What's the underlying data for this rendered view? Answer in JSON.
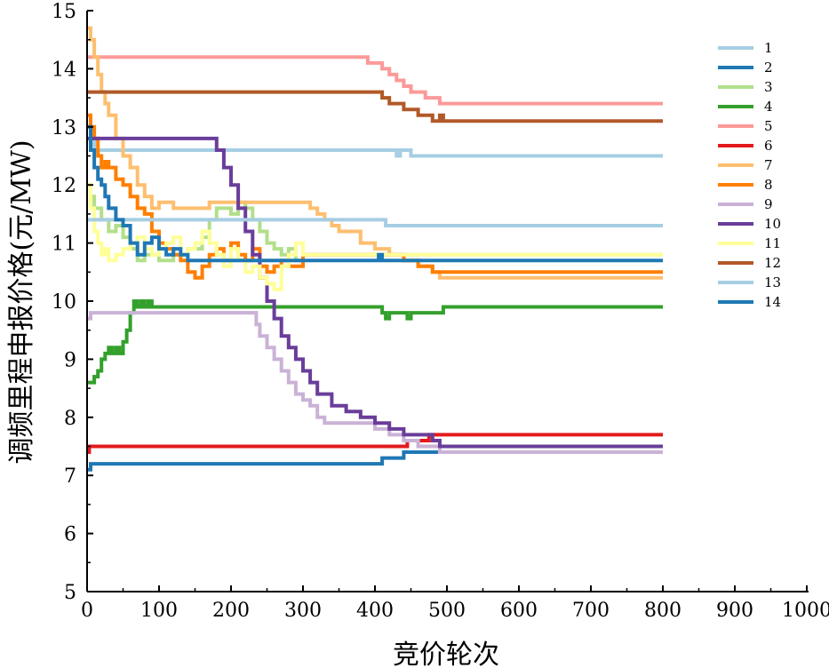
{
  "chart_data": {
    "type": "line",
    "title": "",
    "xlabel": "竞价轮次",
    "ylabel": "调频里程申报价格(元/MW)",
    "xlim": [
      0,
      1000
    ],
    "ylim": [
      5,
      15
    ],
    "xticks": [
      0,
      100,
      200,
      300,
      400,
      500,
      600,
      700,
      800,
      900,
      1000
    ],
    "yticks": [
      5,
      6,
      7,
      8,
      9,
      10,
      11,
      12,
      13,
      14,
      15
    ],
    "grid": false,
    "legend_position": "top-right",
    "series": [
      {
        "name": "1",
        "color": "#a6cee3",
        "x": [
          0,
          5,
          10,
          20,
          420,
          430,
          435,
          445,
          450,
          800
        ],
        "y": [
          13.0,
          12.8,
          12.6,
          12.6,
          12.6,
          12.5,
          12.6,
          12.6,
          12.5,
          12.5
        ]
      },
      {
        "name": "2",
        "color": "#1f78b4",
        "x": [
          0,
          5,
          10,
          200,
          400,
          410,
          420,
          440,
          450,
          470,
          800
        ],
        "y": [
          7.1,
          7.2,
          7.2,
          7.2,
          7.2,
          7.3,
          7.3,
          7.4,
          7.4,
          7.4,
          7.4
        ]
      },
      {
        "name": "3",
        "color": "#b2df8a",
        "x": [
          0,
          5,
          10,
          20,
          30,
          40,
          50,
          60,
          70,
          80,
          100,
          120,
          140,
          160,
          170,
          180,
          190,
          200,
          210,
          220,
          230,
          240,
          250,
          260,
          270,
          280,
          290,
          300,
          320,
          350,
          400,
          420,
          450,
          800
        ],
        "y": [
          12.0,
          11.8,
          11.6,
          11.4,
          11.2,
          11.3,
          11.1,
          10.9,
          10.7,
          10.8,
          10.7,
          10.8,
          10.9,
          11.1,
          11.4,
          11.6,
          11.6,
          11.5,
          11.7,
          11.6,
          11.4,
          11.2,
          11.0,
          10.9,
          10.8,
          10.9,
          10.7,
          10.8,
          10.8,
          10.8,
          10.8,
          10.8,
          10.8,
          10.8
        ]
      },
      {
        "name": "4",
        "color": "#33a02c",
        "x": [
          0,
          5,
          10,
          15,
          20,
          25,
          30,
          35,
          40,
          45,
          50,
          55,
          60,
          65,
          70,
          75,
          80,
          85,
          90,
          410,
          415,
          420,
          440,
          445,
          450,
          490,
          495,
          500,
          800
        ],
        "y": [
          8.6,
          8.6,
          8.7,
          8.8,
          9.0,
          9.1,
          9.2,
          9.1,
          9.2,
          9.1,
          9.3,
          9.5,
          9.8,
          10.0,
          9.9,
          10.0,
          9.9,
          10.0,
          9.9,
          9.8,
          9.7,
          9.8,
          9.8,
          9.7,
          9.8,
          9.8,
          9.9,
          9.9,
          9.9
        ]
      },
      {
        "name": "5",
        "color": "#fb9a99",
        "x": [
          0,
          5,
          10,
          380,
          390,
          400,
          410,
          420,
          430,
          440,
          450,
          460,
          470,
          480,
          490,
          500,
          800
        ],
        "y": [
          14.2,
          14.2,
          14.2,
          14.2,
          14.1,
          14.1,
          14.0,
          13.9,
          13.8,
          13.7,
          13.6,
          13.6,
          13.5,
          13.5,
          13.4,
          13.4,
          13.4
        ]
      },
      {
        "name": "6",
        "color": "#e31a1c",
        "x": [
          0,
          3,
          5,
          10,
          300,
          440,
          445,
          450,
          470,
          475,
          480,
          800
        ],
        "y": [
          7.4,
          7.5,
          7.5,
          7.5,
          7.5,
          7.5,
          7.6,
          7.6,
          7.6,
          7.7,
          7.7,
          7.7
        ]
      },
      {
        "name": "7",
        "color": "#fdbf6f",
        "x": [
          0,
          5,
          10,
          15,
          20,
          25,
          30,
          40,
          50,
          60,
          70,
          80,
          90,
          100,
          120,
          140,
          160,
          170,
          200,
          240,
          280,
          300,
          310,
          320,
          330,
          340,
          350,
          380,
          400,
          420,
          440,
          460,
          480,
          490,
          500,
          800
        ],
        "y": [
          14.7,
          14.5,
          14.2,
          13.9,
          13.6,
          13.4,
          13.2,
          12.8,
          12.5,
          12.3,
          12.0,
          11.8,
          11.6,
          11.7,
          11.6,
          11.6,
          11.6,
          11.7,
          11.7,
          11.7,
          11.7,
          11.7,
          11.6,
          11.5,
          11.4,
          11.3,
          11.2,
          11.0,
          10.9,
          10.8,
          10.7,
          10.6,
          10.5,
          10.4,
          10.4,
          10.4
        ]
      },
      {
        "name": "8",
        "color": "#ff7f00",
        "x": [
          0,
          5,
          10,
          15,
          20,
          25,
          30,
          40,
          50,
          60,
          70,
          80,
          90,
          100,
          110,
          120,
          130,
          140,
          150,
          160,
          170,
          180,
          190,
          200,
          210,
          220,
          230,
          240,
          250,
          260,
          270,
          280,
          300,
          400,
          440,
          460,
          480,
          500,
          800
        ],
        "y": [
          13.2,
          13.0,
          12.8,
          12.5,
          12.3,
          12.4,
          12.3,
          12.1,
          12.0,
          11.8,
          11.6,
          11.5,
          11.2,
          11.0,
          10.9,
          10.8,
          10.7,
          10.5,
          10.4,
          10.6,
          10.8,
          10.9,
          10.7,
          11.0,
          10.8,
          10.7,
          10.9,
          10.6,
          10.5,
          10.6,
          10.7,
          10.6,
          10.8,
          10.8,
          10.7,
          10.6,
          10.5,
          10.5,
          10.5
        ]
      },
      {
        "name": "9",
        "color": "#cab2d6",
        "x": [
          0,
          5,
          10,
          230,
          235,
          240,
          250,
          260,
          270,
          280,
          290,
          300,
          310,
          320,
          330,
          340,
          360,
          400,
          420,
          440,
          460,
          480,
          490,
          500,
          800
        ],
        "y": [
          9.7,
          9.8,
          9.8,
          9.8,
          9.6,
          9.4,
          9.2,
          9.0,
          8.8,
          8.6,
          8.4,
          8.3,
          8.2,
          8.0,
          7.9,
          7.9,
          7.9,
          7.8,
          7.7,
          7.6,
          7.5,
          7.5,
          7.4,
          7.4,
          7.4
        ]
      },
      {
        "name": "10",
        "color": "#6a3d9a",
        "x": [
          0,
          5,
          10,
          175,
          180,
          190,
          200,
          210,
          220,
          230,
          240,
          250,
          260,
          270,
          280,
          290,
          300,
          310,
          320,
          340,
          360,
          380,
          400,
          420,
          440,
          460,
          480,
          490,
          500,
          800
        ],
        "y": [
          12.8,
          12.8,
          12.8,
          12.8,
          12.6,
          12.3,
          12.0,
          11.6,
          11.2,
          10.8,
          10.4,
          10.0,
          9.7,
          9.4,
          9.2,
          9.0,
          8.8,
          8.6,
          8.4,
          8.2,
          8.1,
          8.0,
          7.9,
          7.8,
          7.7,
          7.7,
          7.6,
          7.5,
          7.5,
          7.5
        ]
      },
      {
        "name": "11",
        "color": "#ffff99",
        "x": [
          0,
          5,
          10,
          15,
          20,
          25,
          30,
          40,
          50,
          60,
          70,
          80,
          90,
          100,
          110,
          120,
          130,
          140,
          150,
          160,
          170,
          180,
          190,
          200,
          210,
          220,
          230,
          240,
          250,
          260,
          270,
          280,
          290,
          300,
          400,
          800
        ],
        "y": [
          12.0,
          11.6,
          11.2,
          11.0,
          10.8,
          10.9,
          10.7,
          10.8,
          10.9,
          11.0,
          11.1,
          10.9,
          10.8,
          10.9,
          11.0,
          11.1,
          10.8,
          10.9,
          11.0,
          11.2,
          11.0,
          10.8,
          10.6,
          10.9,
          10.7,
          10.5,
          10.6,
          10.4,
          10.3,
          10.2,
          10.6,
          10.8,
          11.0,
          10.8,
          10.8,
          10.8
        ]
      },
      {
        "name": "12",
        "color": "#b15928",
        "x": [
          0,
          5,
          10,
          400,
          410,
          420,
          430,
          440,
          450,
          460,
          470,
          480,
          490,
          495,
          500,
          800
        ],
        "y": [
          13.6,
          13.6,
          13.6,
          13.6,
          13.5,
          13.4,
          13.4,
          13.3,
          13.3,
          13.2,
          13.2,
          13.1,
          13.2,
          13.1,
          13.1,
          13.1
        ]
      },
      {
        "name": "13",
        "color": "#a6cee3",
        "x": [
          0,
          5,
          10,
          410,
          415,
          420,
          800
        ],
        "y": [
          11.4,
          11.4,
          11.4,
          11.4,
          11.3,
          11.3,
          11.3
        ]
      },
      {
        "name": "14",
        "color": "#1f78b4",
        "x": [
          0,
          5,
          10,
          15,
          20,
          25,
          30,
          40,
          50,
          60,
          70,
          80,
          90,
          100,
          110,
          120,
          130,
          140,
          150,
          400,
          405,
          410,
          800
        ],
        "y": [
          13.0,
          12.6,
          12.3,
          12.1,
          12.0,
          11.8,
          11.6,
          11.4,
          11.3,
          11.0,
          10.8,
          11.0,
          11.1,
          10.9,
          10.8,
          10.9,
          10.8,
          10.7,
          10.7,
          10.7,
          10.8,
          10.7,
          10.7
        ]
      }
    ]
  }
}
